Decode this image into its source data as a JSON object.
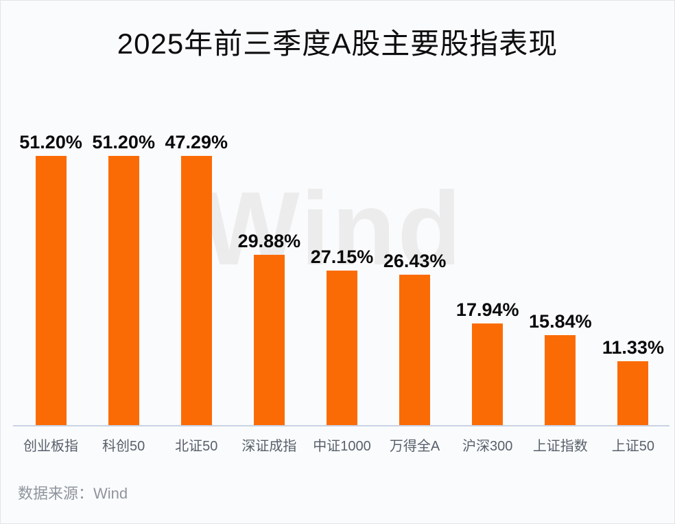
{
  "title": "2025年前三季度A股主要股指表现",
  "watermark": "Wind",
  "source_note": "数据来源：Wind",
  "colors": {
    "bar": "#FB6B05",
    "axis_line": "#C9D2E3",
    "background": "#FAFBFD",
    "title_text": "#0D0D0D",
    "value_label_text": "#0A0A0A",
    "category_label_text": "#58606A",
    "source_text": "#8F959D",
    "watermark_text": "#ECECEC",
    "frame_border": "#E3E4E6"
  },
  "chart_data": {
    "type": "bar",
    "title": "2025年前三季度A股主要股指表现",
    "categories": [
      "创业板指",
      "科创50",
      "北证50",
      "深证成指",
      "中证1000",
      "万得全A",
      "沪深300",
      "上证指数",
      "上证50"
    ],
    "values": [
      51.2,
      51.2,
      47.29,
      29.88,
      27.15,
      26.43,
      17.94,
      15.84,
      11.33
    ],
    "value_labels": [
      "51.20%",
      "51.20%",
      "47.29%",
      "29.88%",
      "27.15%",
      "26.43%",
      "17.94%",
      "15.84%",
      "11.33%"
    ],
    "xlabel": "",
    "ylabel": "",
    "ylim": [
      0,
      51.2
    ],
    "grid": false,
    "legend": "none",
    "bar_color_hex": "#FB6B05",
    "source": "数据来源：Wind"
  }
}
